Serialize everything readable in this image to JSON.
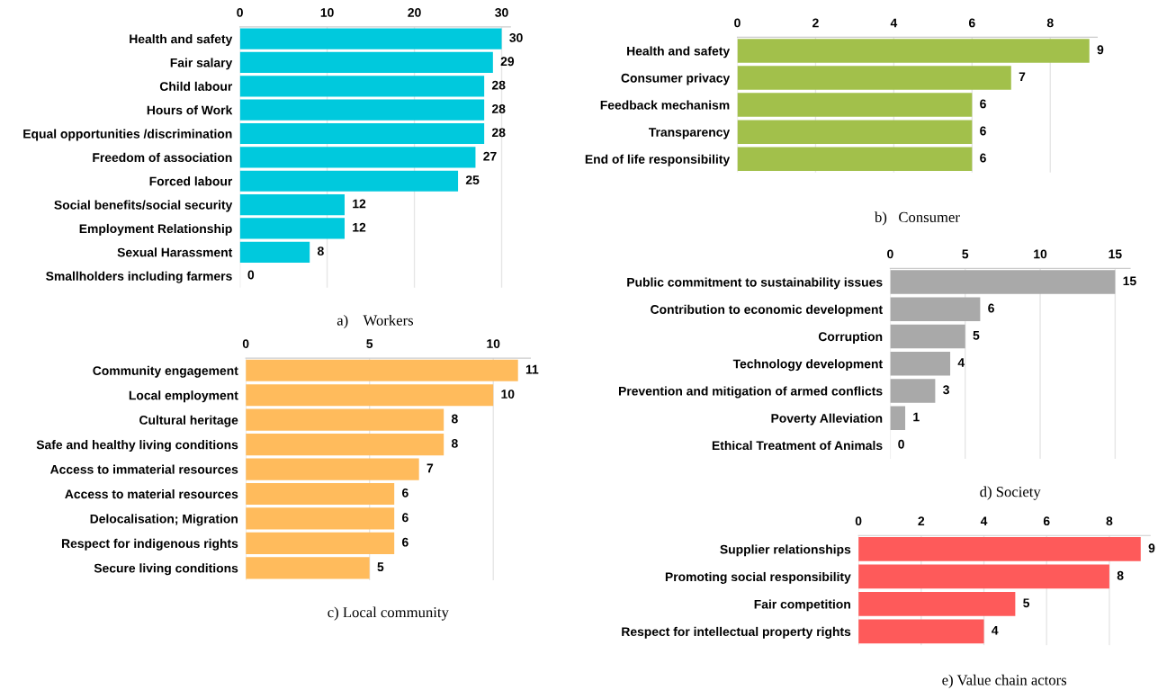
{
  "chart_data": [
    {
      "type": "bar",
      "orientation": "horizontal",
      "title": "a)    Workers",
      "categories": [
        "Health and safety",
        "Fair salary",
        "Child labour",
        "Hours of Work",
        "Equal opportunities /discrimination",
        "Freedom of association",
        "Forced labour",
        "Social benefits/social security",
        "Employment Relationship",
        "Sexual Harassment",
        "Smallholders including farmers"
      ],
      "values": [
        30,
        29,
        28,
        28,
        28,
        27,
        25,
        12,
        12,
        8,
        0
      ],
      "color": "#00c9dd",
      "xlim": [
        0,
        31
      ],
      "xticks": [
        0,
        10,
        20,
        30
      ],
      "grid": "x",
      "data_labels": true,
      "legend": false
    },
    {
      "type": "bar",
      "orientation": "horizontal",
      "title": "b)   Consumer",
      "categories": [
        "Health and safety",
        "Consumer privacy",
        "Feedback mechanism",
        "Transparency",
        "End of life responsibility"
      ],
      "values": [
        9,
        7,
        6,
        6,
        6
      ],
      "color": "#a2c04b",
      "xlim": [
        0,
        9.2
      ],
      "xticks": [
        0,
        2,
        4,
        6,
        8
      ],
      "grid": "x",
      "data_labels": true,
      "legend": false
    },
    {
      "type": "bar",
      "orientation": "horizontal",
      "title": "c) Local community",
      "categories": [
        "Community engagement",
        "Local employment",
        "Cultural heritage",
        "Safe and healthy living conditions",
        "Access to immaterial resources",
        "Access to material resources",
        "Delocalisation; Migration",
        "Respect for indigenous rights",
        "Secure living conditions"
      ],
      "values": [
        11,
        10,
        8,
        8,
        7,
        6,
        6,
        6,
        5
      ],
      "color": "#ffbb5c",
      "xlim": [
        0,
        11.5
      ],
      "xticks": [
        0,
        5,
        10
      ],
      "grid": "x",
      "data_labels": true,
      "legend": false
    },
    {
      "type": "bar",
      "orientation": "horizontal",
      "title": "d) Society",
      "categories": [
        "Public commitment to sustainability issues",
        "Contribution to economic development",
        "Corruption",
        "Technology development",
        "Prevention and mitigation of armed conflicts",
        "Poverty Alleviation",
        "Ethical Treatment of Animals"
      ],
      "values": [
        15,
        6,
        5,
        4,
        3,
        1,
        0
      ],
      "color": "#a9a9a9",
      "xlim": [
        0,
        16
      ],
      "xticks": [
        0,
        5,
        10,
        15
      ],
      "grid": "x",
      "data_labels": true,
      "legend": false
    },
    {
      "type": "bar",
      "orientation": "horizontal",
      "title": "e) Value chain actors",
      "categories": [
        "Supplier relationships",
        "Promoting social responsibility",
        "Fair competition",
        "Respect for intellectual property rights"
      ],
      "values": [
        9,
        8,
        5,
        4
      ],
      "color": "#fe5a5a",
      "xlim": [
        0,
        9.3
      ],
      "xticks": [
        0,
        2,
        4,
        6,
        8
      ],
      "grid": "x",
      "data_labels": true,
      "legend": false
    }
  ]
}
